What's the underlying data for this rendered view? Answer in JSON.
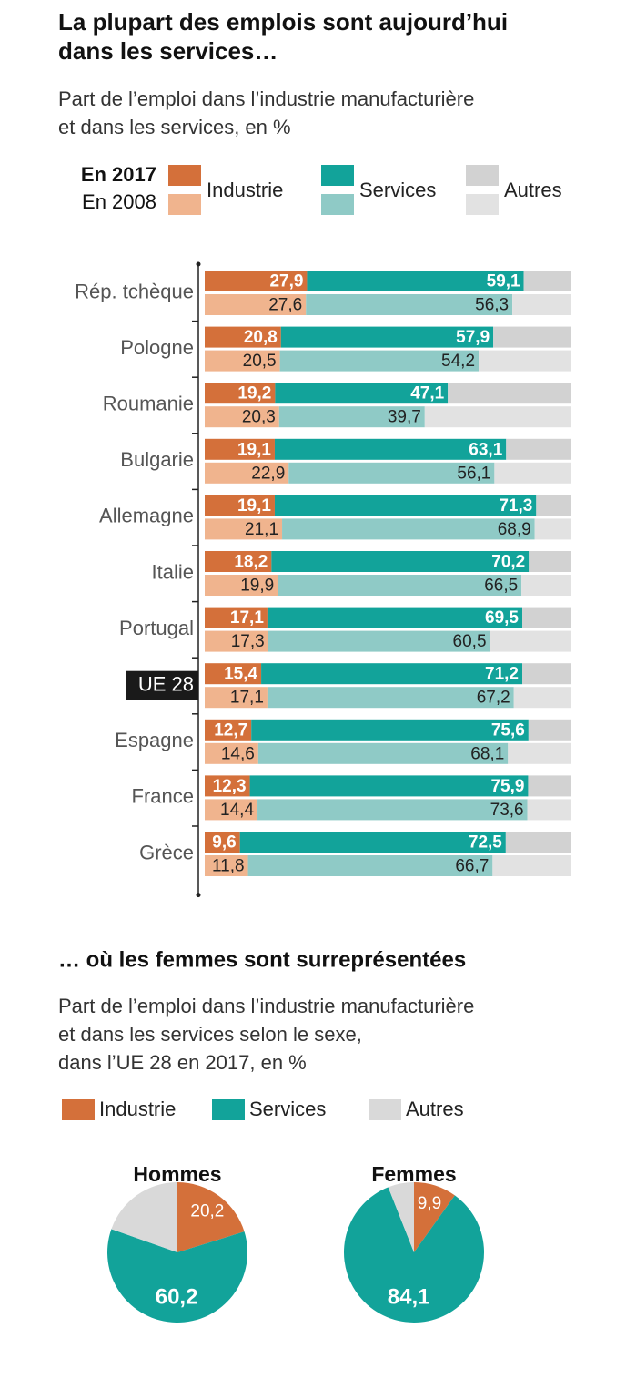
{
  "chart_data": [
    {
      "type": "stacked-bar",
      "title": [
        "La plupart des emplois sont aujourd’hui",
        "dans les services…"
      ],
      "subtitle": [
        "Part de l’emploi dans l’industrie manufacturière",
        "et dans les services, en %"
      ],
      "categories": [
        "Rép. tchèque",
        "Pologne",
        "Roumanie",
        "Bulgarie",
        "Allemagne",
        "Italie",
        "Portugal",
        "UE 28",
        "Espagne",
        "France",
        "Grèce"
      ],
      "highlight": 7,
      "xlim": [
        0,
        100
      ],
      "groups": [
        {
          "name": "En 2017",
          "series": [
            {
              "name": "Industrie",
              "color": "#d4703a",
              "values": [
                27.9,
                20.8,
                19.2,
                19.1,
                19.1,
                18.2,
                17.1,
                15.4,
                12.7,
                12.3,
                9.6
              ],
              "value_labels": [
                "27,9",
                "20,8",
                "19,2",
                "19,1",
                "19,1",
                "18,2",
                "17,1",
                "15,4",
                "12,7",
                "12,3",
                "9,6"
              ]
            },
            {
              "name": "Services",
              "color": "#12a39a",
              "values": [
                59.1,
                57.9,
                47.1,
                63.1,
                71.3,
                70.2,
                69.5,
                71.2,
                75.6,
                75.9,
                72.5
              ],
              "value_labels": [
                "59,1",
                "57,9",
                "47,1",
                "63,1",
                "71,3",
                "70,2",
                "69,5",
                "71,2",
                "75,6",
                "75,9",
                "72,5"
              ]
            },
            {
              "name": "Autres",
              "color": "#d2d2d2",
              "values": [
                13.0,
                21.3,
                33.7,
                17.8,
                9.6,
                11.6,
                13.4,
                13.4,
                11.7,
                11.8,
                17.9
              ]
            }
          ]
        },
        {
          "name": "En 2008",
          "series": [
            {
              "name": "Industrie",
              "color": "#f0b48e",
              "values": [
                27.6,
                20.5,
                20.3,
                22.9,
                21.1,
                19.9,
                17.3,
                17.1,
                14.6,
                14.4,
                11.8
              ],
              "value_labels": [
                "27,6",
                "20,5",
                "20,3",
                "22,9",
                "21,1",
                "19,9",
                "17,3",
                "17,1",
                "14,6",
                "14,4",
                "11,8"
              ]
            },
            {
              "name": "Services",
              "color": "#8fcac6",
              "values": [
                56.3,
                54.2,
                39.7,
                56.1,
                68.9,
                66.5,
                60.5,
                67.2,
                68.1,
                73.6,
                66.7
              ],
              "value_labels": [
                "56,3",
                "54,2",
                "39,7",
                "56,1",
                "68,9",
                "66,5",
                "60,5",
                "67,2",
                "68,1",
                "73,6",
                "66,7"
              ]
            },
            {
              "name": "Autres",
              "color": "#e2e2e2",
              "values": [
                16.1,
                25.3,
                40.0,
                21.0,
                10.0,
                13.6,
                22.2,
                15.7,
                17.3,
                12.0,
                21.5
              ]
            }
          ]
        }
      ]
    },
    {
      "type": "pie",
      "title": "… où les femmes sont surreprésentées",
      "subtitle": [
        "Part de l’emploi dans l’industrie manufacturière",
        "et dans les services selon le sexe,",
        "dans l’UE 28 en 2017, en %"
      ],
      "categories": [
        "Industrie",
        "Services",
        "Autres"
      ],
      "colors": [
        "#d4703a",
        "#12a39a",
        "#d9d9d9"
      ],
      "pies": [
        {
          "title": "Hommes",
          "values": [
            20.2,
            60.2,
            19.6
          ],
          "value_labels": [
            "20,2",
            "60,2",
            null
          ]
        },
        {
          "title": "Femmes",
          "values": [
            9.9,
            84.1,
            6.0
          ],
          "value_labels": [
            "9,9",
            "84,1",
            null
          ]
        }
      ]
    }
  ]
}
